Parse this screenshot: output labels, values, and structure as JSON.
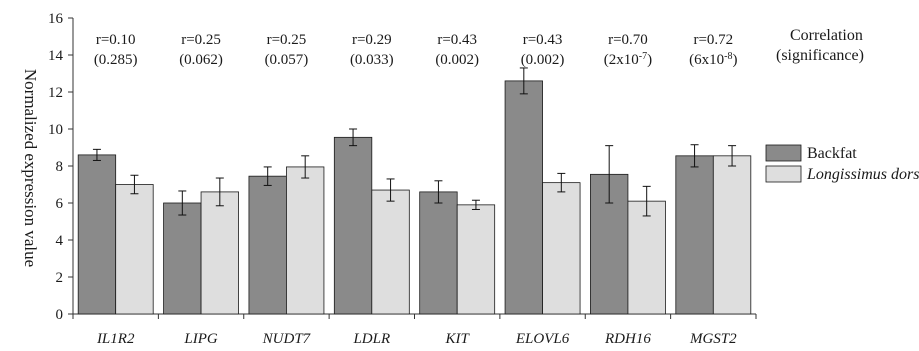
{
  "chart_data": {
    "type": "bar",
    "ylabel": "Normalized expression value",
    "ylim": [
      0,
      16
    ],
    "yticks": [
      0,
      2,
      4,
      6,
      8,
      10,
      12,
      14,
      16
    ],
    "grid": false,
    "categories": [
      "IL1R2",
      "LIPG",
      "NUDT7",
      "LDLR",
      "KIT",
      "ELOVL6",
      "RDH16",
      "MGST2"
    ],
    "series": [
      {
        "name": "Backfat",
        "color": "#8a8a8a",
        "values": [
          8.6,
          6.0,
          7.45,
          9.55,
          6.6,
          12.6,
          7.55,
          8.55
        ],
        "errors": [
          0.3,
          0.65,
          0.5,
          0.45,
          0.6,
          0.7,
          1.55,
          0.6
        ]
      },
      {
        "name": "Longissimus dorsi",
        "color": "#dedede",
        "values": [
          7.0,
          6.6,
          7.95,
          6.7,
          5.9,
          7.1,
          6.1,
          8.55
        ],
        "errors": [
          0.5,
          0.75,
          0.6,
          0.6,
          0.25,
          0.5,
          0.8,
          0.55
        ]
      }
    ],
    "legend": {
      "placement": "right",
      "header_line1": "Correlation",
      "header_line2": "(significance)"
    },
    "annotations": [
      {
        "r": "r=0.10",
        "p": "(0.285)"
      },
      {
        "r": "r=0.25",
        "p": "(0.062)"
      },
      {
        "r": "r=0.25",
        "p": "(0.057)"
      },
      {
        "r": "r=0.29",
        "p": "(0.033)"
      },
      {
        "r": "r=0.43",
        "p": "(0.002)"
      },
      {
        "r": "r=0.43",
        "p": "(0.002)"
      },
      {
        "r": "r=0.70",
        "p_base": "(2x10",
        "p_exp": "-7",
        "p_close": ")"
      },
      {
        "r": "r=0.72",
        "p_base": "(6x10",
        "p_exp": "-8",
        "p_close": ")"
      }
    ]
  }
}
